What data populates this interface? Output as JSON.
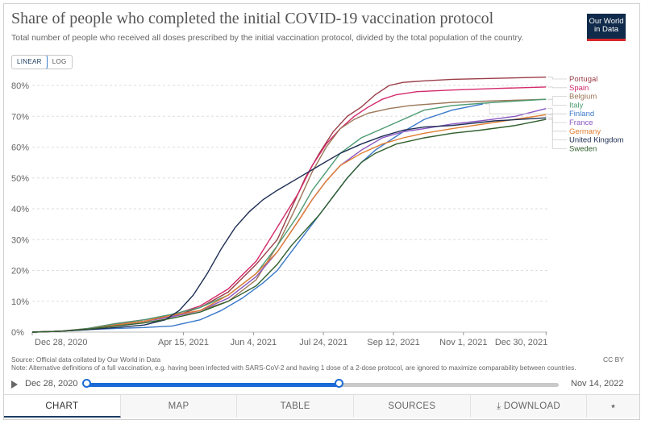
{
  "header": {
    "title": "Share of people who completed the initial COVID-19 vaccination protocol",
    "subtitle": "Total number of people who received all doses prescribed by the initial vaccination protocol, divided by the total population of the country.",
    "logo_line1": "Our World",
    "logo_line2": "in Data"
  },
  "scale_toggle": {
    "linear": "LINEAR",
    "log": "LOG",
    "selected": "LINEAR"
  },
  "chart_data": {
    "type": "line",
    "title": "Share of people who completed the initial COVID-19 vaccination protocol",
    "xlabel": "",
    "ylabel": "",
    "ylim": [
      0,
      80
    ],
    "yticks": [
      "0%",
      "10%",
      "20%",
      "30%",
      "40%",
      "50%",
      "60%",
      "70%",
      "80%"
    ],
    "xlim_days": [
      0,
      368
    ],
    "x_ticks": [
      {
        "label": "Dec 28, 2020",
        "day": 0
      },
      {
        "label": "Apr 15, 2021",
        "day": 108
      },
      {
        "label": "Jun 4, 2021",
        "day": 158
      },
      {
        "label": "Jul 24, 2021",
        "day": 208
      },
      {
        "label": "Sep 12, 2021",
        "day": 258
      },
      {
        "label": "Nov 1, 2021",
        "day": 308
      },
      {
        "label": "Dec 30, 2021",
        "day": 367
      }
    ],
    "series": [
      {
        "name": "Portugal",
        "color": "#9a3e48",
        "points": [
          [
            0,
            0
          ],
          [
            20,
            0.3
          ],
          [
            40,
            1
          ],
          [
            60,
            2.5
          ],
          [
            80,
            3.5
          ],
          [
            100,
            5
          ],
          [
            120,
            8
          ],
          [
            140,
            13
          ],
          [
            160,
            22
          ],
          [
            175,
            30
          ],
          [
            185,
            40
          ],
          [
            195,
            50
          ],
          [
            205,
            58
          ],
          [
            215,
            65
          ],
          [
            225,
            70
          ],
          [
            235,
            73
          ],
          [
            245,
            77
          ],
          [
            255,
            80
          ],
          [
            265,
            81
          ],
          [
            280,
            81.5
          ],
          [
            300,
            82
          ],
          [
            330,
            82.3
          ],
          [
            367,
            82.7
          ]
        ]
      },
      {
        "name": "Spain",
        "color": "#d42a6a",
        "points": [
          [
            0,
            0
          ],
          [
            20,
            0.3
          ],
          [
            40,
            1.2
          ],
          [
            60,
            2.8
          ],
          [
            80,
            4
          ],
          [
            100,
            5.5
          ],
          [
            120,
            8.5
          ],
          [
            140,
            14
          ],
          [
            160,
            23
          ],
          [
            175,
            34
          ],
          [
            190,
            45
          ],
          [
            200,
            54
          ],
          [
            210,
            61
          ],
          [
            220,
            66
          ],
          [
            230,
            70
          ],
          [
            240,
            73
          ],
          [
            250,
            75.5
          ],
          [
            260,
            77
          ],
          [
            275,
            78
          ],
          [
            300,
            78.5
          ],
          [
            330,
            79
          ],
          [
            367,
            79.5
          ]
        ]
      },
      {
        "name": "Belgium",
        "color": "#9c7759",
        "points": [
          [
            0,
            0
          ],
          [
            20,
            0.3
          ],
          [
            40,
            1
          ],
          [
            60,
            2.5
          ],
          [
            80,
            3.5
          ],
          [
            100,
            5
          ],
          [
            120,
            7
          ],
          [
            140,
            10
          ],
          [
            160,
            17
          ],
          [
            175,
            28
          ],
          [
            190,
            42
          ],
          [
            200,
            52
          ],
          [
            210,
            60
          ],
          [
            220,
            66
          ],
          [
            230,
            69
          ],
          [
            240,
            71
          ],
          [
            255,
            72.5
          ],
          [
            270,
            73.5
          ],
          [
            300,
            74.5
          ],
          [
            330,
            75
          ],
          [
            367,
            75.5
          ]
        ]
      },
      {
        "name": "Italy",
        "color": "#4c9a72",
        "points": [
          [
            0,
            0
          ],
          [
            20,
            0.3
          ],
          [
            40,
            1.2
          ],
          [
            60,
            2.8
          ],
          [
            80,
            4
          ],
          [
            100,
            5.8
          ],
          [
            120,
            8
          ],
          [
            140,
            12
          ],
          [
            160,
            19
          ],
          [
            175,
            28
          ],
          [
            190,
            38
          ],
          [
            200,
            46
          ],
          [
            210,
            52
          ],
          [
            220,
            58
          ],
          [
            235,
            63
          ],
          [
            250,
            66
          ],
          [
            265,
            69
          ],
          [
            280,
            72
          ],
          [
            300,
            73.5
          ],
          [
            330,
            74.5
          ],
          [
            367,
            75.5
          ]
        ]
      },
      {
        "name": "Finland",
        "color": "#3a78c9",
        "points": [
          [
            0,
            0
          ],
          [
            20,
            0.3
          ],
          [
            40,
            0.8
          ],
          [
            60,
            1.2
          ],
          [
            80,
            1.5
          ],
          [
            100,
            2
          ],
          [
            120,
            4
          ],
          [
            135,
            7
          ],
          [
            150,
            11
          ],
          [
            165,
            16
          ],
          [
            175,
            20
          ],
          [
            185,
            26
          ],
          [
            195,
            32
          ],
          [
            205,
            38
          ],
          [
            215,
            44
          ],
          [
            225,
            50
          ],
          [
            235,
            55
          ],
          [
            245,
            59
          ],
          [
            255,
            62
          ],
          [
            265,
            65
          ],
          [
            280,
            69
          ],
          [
            300,
            72
          ],
          [
            322,
            74
          ]
        ]
      },
      {
        "name": "France",
        "color": "#8a56c2",
        "points": [
          [
            0,
            0
          ],
          [
            20,
            0.3
          ],
          [
            40,
            1
          ],
          [
            60,
            2.3
          ],
          [
            80,
            3.5
          ],
          [
            100,
            5
          ],
          [
            120,
            7
          ],
          [
            140,
            11
          ],
          [
            160,
            18
          ],
          [
            175,
            26
          ],
          [
            190,
            36
          ],
          [
            200,
            43
          ],
          [
            210,
            49
          ],
          [
            220,
            54
          ],
          [
            235,
            59
          ],
          [
            250,
            63
          ],
          [
            265,
            65
          ],
          [
            280,
            66
          ],
          [
            300,
            67.5
          ],
          [
            320,
            68.5
          ],
          [
            345,
            70
          ],
          [
            367,
            72.5
          ]
        ]
      },
      {
        "name": "Germany",
        "color": "#e07e32",
        "points": [
          [
            0,
            0
          ],
          [
            20,
            0.3
          ],
          [
            40,
            1
          ],
          [
            60,
            2.3
          ],
          [
            80,
            3.5
          ],
          [
            100,
            5.5
          ],
          [
            120,
            7
          ],
          [
            140,
            12
          ],
          [
            160,
            19
          ],
          [
            175,
            26
          ],
          [
            190,
            36
          ],
          [
            200,
            43
          ],
          [
            210,
            49
          ],
          [
            220,
            54
          ],
          [
            235,
            58
          ],
          [
            250,
            61
          ],
          [
            265,
            63
          ],
          [
            280,
            64.5
          ],
          [
            300,
            66
          ],
          [
            330,
            68
          ],
          [
            367,
            70.5
          ]
        ]
      },
      {
        "name": "United Kingdom",
        "color": "#1c2d52",
        "points": [
          [
            0,
            0
          ],
          [
            20,
            0.3
          ],
          [
            40,
            0.8
          ],
          [
            60,
            1.5
          ],
          [
            80,
            2.3
          ],
          [
            95,
            4
          ],
          [
            105,
            7
          ],
          [
            115,
            12
          ],
          [
            125,
            19
          ],
          [
            135,
            27
          ],
          [
            145,
            34
          ],
          [
            155,
            39
          ],
          [
            165,
            43
          ],
          [
            175,
            46
          ],
          [
            190,
            50
          ],
          [
            205,
            54
          ],
          [
            220,
            58
          ],
          [
            235,
            61
          ],
          [
            250,
            63.5
          ],
          [
            265,
            65.5
          ],
          [
            280,
            66.5
          ],
          [
            300,
            67
          ],
          [
            330,
            68.5
          ],
          [
            367,
            69.5
          ]
        ]
      },
      {
        "name": "Sweden",
        "color": "#2f5e2b",
        "points": [
          [
            0,
            0
          ],
          [
            20,
            0.3
          ],
          [
            40,
            1
          ],
          [
            60,
            2
          ],
          [
            80,
            3
          ],
          [
            100,
            4.5
          ],
          [
            120,
            6.5
          ],
          [
            140,
            10
          ],
          [
            160,
            15
          ],
          [
            175,
            22
          ],
          [
            185,
            28
          ],
          [
            195,
            33
          ],
          [
            205,
            38
          ],
          [
            215,
            44
          ],
          [
            225,
            50
          ],
          [
            235,
            55
          ],
          [
            245,
            58
          ],
          [
            260,
            61
          ],
          [
            280,
            63
          ],
          [
            300,
            64.5
          ],
          [
            320,
            65.5
          ],
          [
            345,
            67
          ],
          [
            367,
            69
          ]
        ]
      }
    ]
  },
  "footer": {
    "source": "Source: Official data collated by Our World in Data",
    "note": "Note: Alternative definitions of a full vaccination, e.g. having been infected with SARS-CoV-2 and having 1 dose of a 2-dose protocol, are ignored to maximize comparability between countries.",
    "license": "CC BY"
  },
  "timeline": {
    "start_label": "Dec 28, 2020",
    "end_label": "Nov 14, 2022"
  },
  "tabs": [
    {
      "label": "CHART"
    },
    {
      "label": "MAP"
    },
    {
      "label": "TABLE"
    },
    {
      "label": "SOURCES"
    },
    {
      "label": "DOWNLOAD"
    }
  ]
}
